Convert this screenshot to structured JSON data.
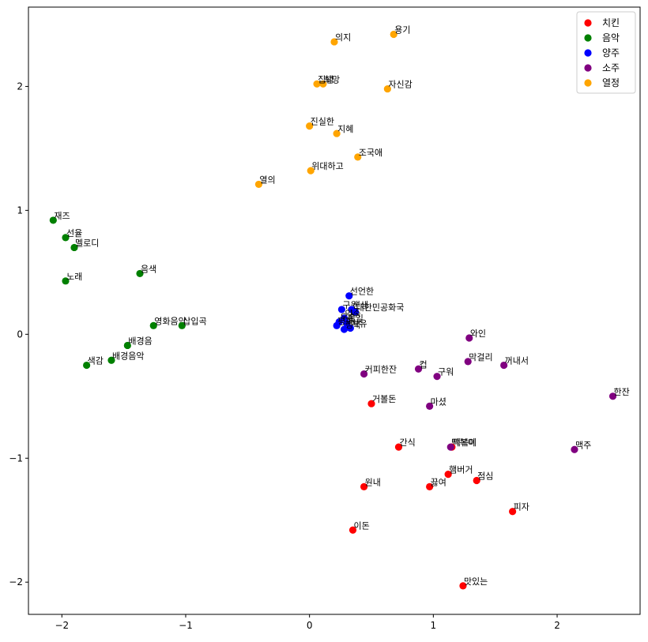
{
  "chart_data": {
    "type": "scatter",
    "title": "",
    "xlabel": "",
    "ylabel": "",
    "xlim": [
      -2.27,
      2.67
    ],
    "ylim": [
      -2.26,
      2.64
    ],
    "xticks": [
      -2,
      -1,
      0,
      1,
      2
    ],
    "yticks": [
      -2,
      -1,
      0,
      1,
      2
    ],
    "grid": false,
    "legend": "top-right",
    "series": [
      {
        "name": "치킨",
        "color": "#ff0000",
        "points": [
          {
            "label": "거볼돈",
            "x": 0.5,
            "y": -0.56
          },
          {
            "label": "간식",
            "x": 0.72,
            "y": -0.91
          },
          {
            "label": "떡볶이",
            "x": 1.15,
            "y": -0.91
          },
          {
            "label": "햄버거",
            "x": 1.12,
            "y": -1.13
          },
          {
            "label": "점심",
            "x": 1.35,
            "y": -1.18
          },
          {
            "label": "원내",
            "x": 0.44,
            "y": -1.23
          },
          {
            "label": "끓여",
            "x": 0.97,
            "y": -1.23
          },
          {
            "label": "피자",
            "x": 1.64,
            "y": -1.43
          },
          {
            "label": "이돈",
            "x": 0.35,
            "y": -1.58
          },
          {
            "label": "맛있는",
            "x": 1.24,
            "y": -2.03
          }
        ]
      },
      {
        "name": "음악",
        "color": "#008000",
        "points": [
          {
            "label": "재즈",
            "x": -2.07,
            "y": 0.92
          },
          {
            "label": "선율",
            "x": -1.97,
            "y": 0.78
          },
          {
            "label": "멜로디",
            "x": -1.9,
            "y": 0.7
          },
          {
            "label": "노래",
            "x": -1.97,
            "y": 0.43
          },
          {
            "label": "음색",
            "x": -1.37,
            "y": 0.49
          },
          {
            "label": "영화음악",
            "x": -1.26,
            "y": 0.07
          },
          {
            "label": "삽입곡",
            "x": -1.03,
            "y": 0.07
          },
          {
            "label": "배경음",
            "x": -1.47,
            "y": -0.09
          },
          {
            "label": "배경음악",
            "x": -1.6,
            "y": -0.21
          },
          {
            "label": "색감",
            "x": -1.8,
            "y": -0.25
          }
        ]
      },
      {
        "name": "양주",
        "color": "#0000ff",
        "points": [
          {
            "label": "선언한",
            "x": 0.32,
            "y": 0.31
          },
          {
            "label": "구원",
            "x": 0.26,
            "y": 0.2
          },
          {
            "label": "대한민공화국",
            "x": 0.37,
            "y": 0.18
          },
          {
            "label": "선생",
            "x": 0.34,
            "y": 0.2
          },
          {
            "label": "약속",
            "x": 0.28,
            "y": 0.13
          },
          {
            "label": "우승",
            "x": 0.24,
            "y": 0.1
          },
          {
            "label": "통일",
            "x": 0.3,
            "y": 0.09
          },
          {
            "label": "평화",
            "x": 0.22,
            "y": 0.07
          },
          {
            "label": "자유",
            "x": 0.33,
            "y": 0.05
          },
          {
            "label": "행복",
            "x": 0.28,
            "y": 0.04
          }
        ]
      },
      {
        "name": "소주",
        "color": "#800080",
        "points": [
          {
            "label": "와인",
            "x": 1.29,
            "y": -0.03
          },
          {
            "label": "막걸리",
            "x": 1.28,
            "y": -0.22
          },
          {
            "label": "꺼내서",
            "x": 1.57,
            "y": -0.25
          },
          {
            "label": "컵",
            "x": 0.88,
            "y": -0.28
          },
          {
            "label": "커피한잔",
            "x": 0.44,
            "y": -0.32
          },
          {
            "label": "구워",
            "x": 1.03,
            "y": -0.34
          },
          {
            "label": "한잔",
            "x": 2.45,
            "y": -0.5
          },
          {
            "label": "마셨",
            "x": 0.97,
            "y": -0.58
          },
          {
            "label": "떡볶이",
            "x": 1.14,
            "y": -0.91
          },
          {
            "label": "맥주",
            "x": 2.14,
            "y": -0.93
          }
        ]
      },
      {
        "name": "열정",
        "color": "#ffa500",
        "points": [
          {
            "label": "용기",
            "x": 0.68,
            "y": 2.42
          },
          {
            "label": "의지",
            "x": 0.2,
            "y": 2.36
          },
          {
            "label": "희망",
            "x": 0.11,
            "y": 2.02
          },
          {
            "label": "집념",
            "x": 0.06,
            "y": 2.02
          },
          {
            "label": "자신감",
            "x": 0.63,
            "y": 1.98
          },
          {
            "label": "진실한",
            "x": 0.0,
            "y": 1.68
          },
          {
            "label": "지혜",
            "x": 0.22,
            "y": 1.62
          },
          {
            "label": "조국애",
            "x": 0.39,
            "y": 1.43
          },
          {
            "label": "위대하고",
            "x": 0.01,
            "y": 1.32
          },
          {
            "label": "열의",
            "x": -0.41,
            "y": 1.21
          }
        ]
      }
    ]
  }
}
